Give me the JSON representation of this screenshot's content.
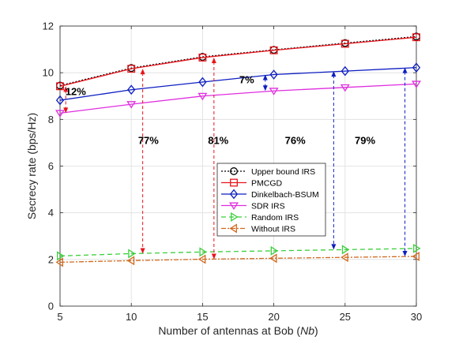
{
  "chart_data": {
    "type": "line",
    "xlabel_prefix": "Number of antennas at Bob (",
    "xlabel_var": "Nb",
    "xlabel_suffix": ")",
    "ylabel": "Secrecy rate (bps/Hz)",
    "xlim": [
      5,
      30
    ],
    "ylim": [
      0,
      12
    ],
    "xticks": [
      5,
      10,
      15,
      20,
      25,
      30
    ],
    "yticks": [
      0,
      2,
      4,
      6,
      8,
      10,
      12
    ],
    "grid": true,
    "legend_position": "center-right",
    "x": [
      5,
      10,
      15,
      20,
      25,
      30
    ],
    "series": [
      {
        "name": "Upper bound IRS",
        "values": [
          9.45,
          10.2,
          10.68,
          10.98,
          11.27,
          11.55
        ],
        "color": "#000000",
        "dash": "2,2",
        "marker": "circle"
      },
      {
        "name": "PMCGD",
        "values": [
          9.42,
          10.17,
          10.65,
          10.96,
          11.24,
          11.52
        ],
        "color": "#e8141b",
        "dash": "",
        "marker": "square"
      },
      {
        "name": "Dinkelbach-BSUM",
        "values": [
          8.82,
          9.27,
          9.6,
          9.92,
          10.07,
          10.22
        ],
        "color": "#0d1ec2",
        "dash": "",
        "marker": "diamond"
      },
      {
        "name": "SDR IRS",
        "values": [
          8.27,
          8.65,
          9.0,
          9.22,
          9.37,
          9.52
        ],
        "color": "#e02ee0",
        "dash": "",
        "marker": "triangle-down"
      },
      {
        "name": "Random IRS",
        "values": [
          2.15,
          2.25,
          2.32,
          2.37,
          2.42,
          2.47
        ],
        "color": "#3acf3a",
        "dash": "6,4",
        "marker": "triangle-right"
      },
      {
        "name": "Without IRS",
        "values": [
          1.88,
          1.95,
          2.01,
          2.05,
          2.09,
          2.13
        ],
        "color": "#d2691e",
        "dash": "6,2,2,2",
        "marker": "triangle-left"
      }
    ],
    "annotations": [
      {
        "text": "12%",
        "x": 5.4,
        "y_from": 9.42,
        "y_to": 8.27,
        "text_x": 6.1,
        "text_y": 9.2,
        "color": "#e8141b"
      },
      {
        "text": "77%",
        "x": 10.8,
        "y_from": 10.17,
        "y_to": 2.25,
        "text_x": 11.2,
        "text_y": 7.1,
        "color": "#e8141b"
      },
      {
        "text": "81%",
        "x": 15.8,
        "y_from": 10.65,
        "y_to": 2.01,
        "text_x": 16.1,
        "text_y": 7.1,
        "color": "#e8141b"
      },
      {
        "text": "7%",
        "x": 19.4,
        "y_from": 9.92,
        "y_to": 9.22,
        "text_x": 18.1,
        "text_y": 9.7,
        "color": "#0d1ec2"
      },
      {
        "text": "76%",
        "x": 24.2,
        "y_from": 10.07,
        "y_to": 2.42,
        "text_x": 21.5,
        "text_y": 7.1,
        "color": "#0d1ec2"
      },
      {
        "text": "79%",
        "x": 29.2,
        "y_from": 10.22,
        "y_to": 2.13,
        "text_x": 26.4,
        "text_y": 7.1,
        "color": "#0d1ec2"
      }
    ]
  }
}
